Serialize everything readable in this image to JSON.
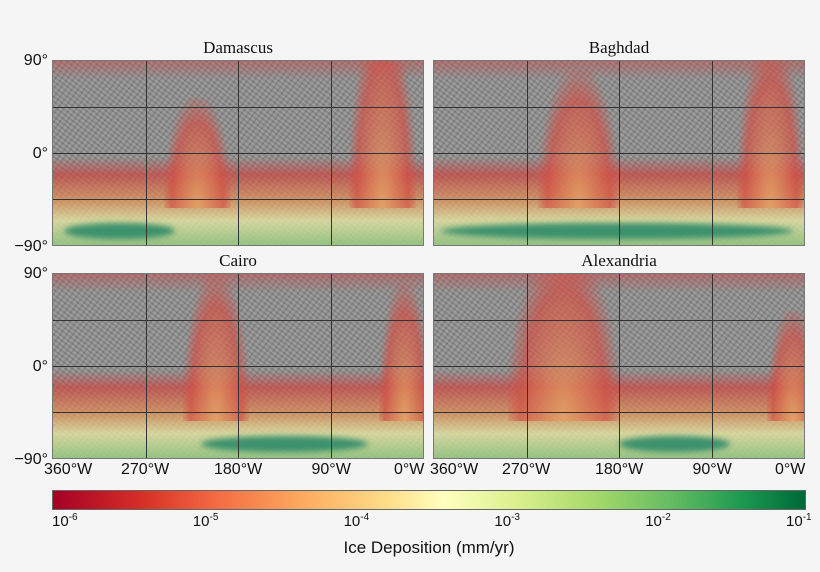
{
  "panels": [
    {
      "title": "Damascus"
    },
    {
      "title": "Baghdad"
    },
    {
      "title": "Cairo"
    },
    {
      "title": "Alexandria"
    }
  ],
  "y_tick_labels": [
    "90°",
    "0°",
    "−90°"
  ],
  "x_tick_labels": [
    "360°W",
    "270°W",
    "180°W",
    "90°W",
    "0°W"
  ],
  "colorbar": {
    "label": "Ice Deposition (mm/yr)",
    "scale": "log",
    "range": [
      1e-06,
      0.1
    ],
    "ticks": [
      {
        "base": "10",
        "exp": "-6"
      },
      {
        "base": "10",
        "exp": "-5"
      },
      {
        "base": "10",
        "exp": "-4"
      },
      {
        "base": "10",
        "exp": "-3"
      },
      {
        "base": "10",
        "exp": "-2"
      },
      {
        "base": "10",
        "exp": "-1"
      }
    ],
    "colors": [
      "#a50026",
      "#f46d43",
      "#fee08b",
      "#ffffbf",
      "#a6d96a",
      "#006837"
    ]
  }
}
